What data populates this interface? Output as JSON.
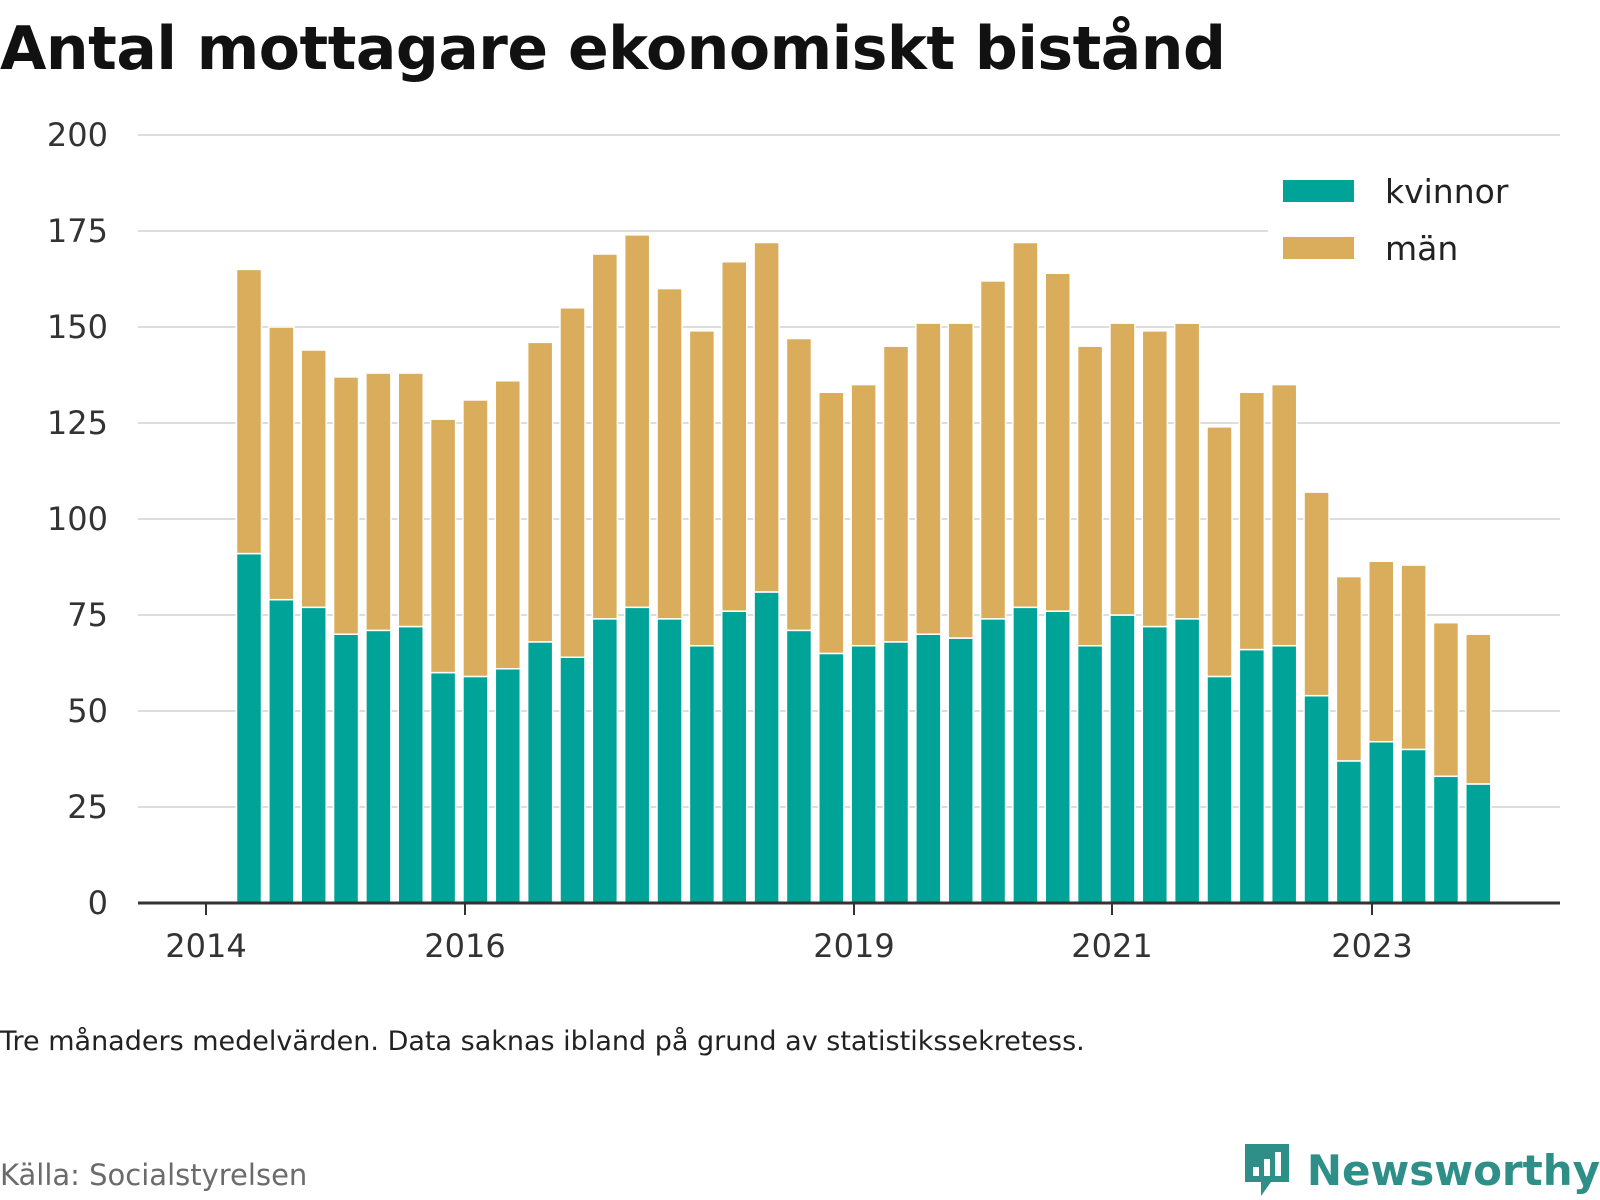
{
  "title": "Antal mottagare ekonomiskt bistånd",
  "note": "Tre månaders medelvärden. Data saknas ibland på grund av statistikssekretess.",
  "source": "Källa: Socialstyrelsen",
  "brand": {
    "name": "Newsworthy",
    "icon": "newsworthy-logo-icon"
  },
  "colors": {
    "kvinnor": "#00a398",
    "man": "#d9ad5b",
    "grid": "#dddddd",
    "axis": "#333333",
    "brand": "#2d8f88"
  },
  "chart_data": {
    "type": "bar",
    "stacked": true,
    "ylim": [
      0,
      200
    ],
    "y_ticks": [
      "0",
      "25",
      "50",
      "75",
      "100",
      "125",
      "150",
      "175",
      "200"
    ],
    "x_ticks": [
      "2014",
      "2016",
      "2019",
      "2021",
      "2023"
    ],
    "legend": {
      "position": "top-right"
    },
    "grid": true,
    "series": [
      {
        "name": "kvinnor",
        "values": [
          91,
          79,
          77,
          70,
          71,
          72,
          60,
          59,
          61,
          68,
          64,
          74,
          77,
          74,
          67,
          76,
          81,
          71,
          65,
          67,
          68,
          70,
          69,
          74,
          77,
          76,
          67,
          75,
          72,
          74,
          59,
          66,
          67,
          54,
          37,
          42,
          40,
          33,
          31
        ]
      },
      {
        "name": "män",
        "values": [
          74,
          71,
          67,
          67,
          67,
          66,
          66,
          72,
          75,
          78,
          91,
          95,
          97,
          86,
          82,
          91,
          91,
          76,
          68,
          68,
          77,
          81,
          82,
          88,
          95,
          88,
          78,
          76,
          77,
          77,
          65,
          67,
          68,
          53,
          48,
          47,
          48,
          40,
          39
        ]
      }
    ]
  }
}
